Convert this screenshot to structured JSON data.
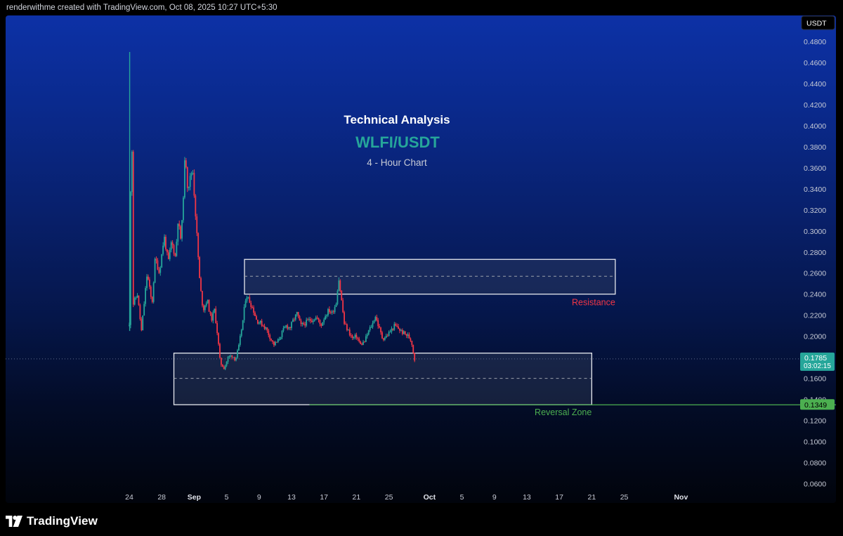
{
  "header": {
    "attribution": "renderwithme created with TradingView.com, Oct 08, 2025 10:27 UTC+5:30"
  },
  "footer": {
    "brand": "TradingView"
  },
  "colors": {
    "up": "#26a69a",
    "down": "#f23645",
    "resistance_label": "#f23645",
    "reversal_label": "#4caf50",
    "title_accent": "#26a69a"
  },
  "chart_data": {
    "type": "candlestick",
    "symbol": "WLFI/USDT",
    "title": "Technical Analysis",
    "subtitle": "WLFI/USDT",
    "caption": "4 - Hour Chart",
    "currency_badge": "USDT",
    "yaxis": {
      "ylim": [
        0.047,
        0.49
      ],
      "ticks": [
        "0.4800",
        "0.4600",
        "0.4400",
        "0.4200",
        "0.4000",
        "0.3800",
        "0.3600",
        "0.3400",
        "0.3200",
        "0.3000",
        "0.2800",
        "0.2600",
        "0.2400",
        "0.2200",
        "0.2000",
        "0.1800",
        "0.1600",
        "0.1400",
        "0.1200",
        "0.1000",
        "0.0800",
        "0.0600"
      ]
    },
    "xaxis": {
      "ticks": [
        {
          "label": "24",
          "day": 0
        },
        {
          "label": "28",
          "day": 4
        },
        {
          "label": "Sep",
          "day": 8
        },
        {
          "label": "5",
          "day": 12
        },
        {
          "label": "9",
          "day": 16
        },
        {
          "label": "13",
          "day": 20
        },
        {
          "label": "17",
          "day": 24
        },
        {
          "label": "21",
          "day": 28
        },
        {
          "label": "25",
          "day": 32
        },
        {
          "label": "Oct",
          "day": 37
        },
        {
          "label": "5",
          "day": 41
        },
        {
          "label": "9",
          "day": 45
        },
        {
          "label": "13",
          "day": 49
        },
        {
          "label": "17",
          "day": 53
        },
        {
          "label": "21",
          "day": 57
        },
        {
          "label": "25",
          "day": 61
        },
        {
          "label": "Nov",
          "day": 68
        }
      ]
    },
    "price_path": [
      [
        0.0,
        0.21
      ],
      [
        0.004,
        0.46
      ],
      [
        0.1,
        0.43
      ],
      [
        0.1,
        0.3
      ],
      [
        0.3,
        0.42
      ],
      [
        0.45,
        0.23
      ],
      [
        1.0,
        0.24
      ],
      [
        1.5,
        0.205
      ],
      [
        2.2,
        0.26
      ],
      [
        2.8,
        0.23
      ],
      [
        3.2,
        0.275
      ],
      [
        3.7,
        0.26
      ],
      [
        4.3,
        0.295
      ],
      [
        4.8,
        0.27
      ],
      [
        5.2,
        0.29
      ],
      [
        5.7,
        0.275
      ],
      [
        6.0,
        0.31
      ],
      [
        6.4,
        0.29
      ],
      [
        6.9,
        0.375
      ],
      [
        7.2,
        0.34
      ],
      [
        7.8,
        0.36
      ],
      [
        8.3,
        0.3
      ],
      [
        8.7,
        0.25
      ],
      [
        9.1,
        0.225
      ],
      [
        9.6,
        0.235
      ],
      [
        10.1,
        0.215
      ],
      [
        10.5,
        0.225
      ],
      [
        10.9,
        0.2
      ],
      [
        11.2,
        0.175
      ],
      [
        11.7,
        0.17
      ],
      [
        12.2,
        0.18
      ],
      [
        12.7,
        0.182
      ],
      [
        13.1,
        0.178
      ],
      [
        13.5,
        0.19
      ],
      [
        14.0,
        0.215
      ],
      [
        14.4,
        0.24
      ],
      [
        14.9,
        0.232
      ],
      [
        15.3,
        0.225
      ],
      [
        15.7,
        0.215
      ],
      [
        16.3,
        0.212
      ],
      [
        16.8,
        0.208
      ],
      [
        17.3,
        0.2
      ],
      [
        17.8,
        0.192
      ],
      [
        18.3,
        0.195
      ],
      [
        18.8,
        0.203
      ],
      [
        19.3,
        0.21
      ],
      [
        19.8,
        0.208
      ],
      [
        20.2,
        0.215
      ],
      [
        20.7,
        0.222
      ],
      [
        21.1,
        0.21
      ],
      [
        21.6,
        0.212
      ],
      [
        22.1,
        0.215
      ],
      [
        22.6,
        0.216
      ],
      [
        23.1,
        0.218
      ],
      [
        23.6,
        0.21
      ],
      [
        24.1,
        0.219
      ],
      [
        24.6,
        0.225
      ],
      [
        25.0,
        0.222
      ],
      [
        25.5,
        0.232
      ],
      [
        25.8,
        0.256
      ],
      [
        26.1,
        0.238
      ],
      [
        26.5,
        0.212
      ],
      [
        27.0,
        0.205
      ],
      [
        27.5,
        0.198
      ],
      [
        28.0,
        0.2
      ],
      [
        28.5,
        0.192
      ],
      [
        29.0,
        0.195
      ],
      [
        29.5,
        0.205
      ],
      [
        30.0,
        0.212
      ],
      [
        30.3,
        0.22
      ],
      [
        30.7,
        0.21
      ],
      [
        31.2,
        0.198
      ],
      [
        31.7,
        0.2
      ],
      [
        32.2,
        0.205
      ],
      [
        32.7,
        0.21
      ],
      [
        33.1,
        0.208
      ],
      [
        33.6,
        0.204
      ],
      [
        34.0,
        0.202
      ],
      [
        34.4,
        0.2
      ],
      [
        34.8,
        0.195
      ],
      [
        35.1,
        0.18
      ],
      [
        35.3,
        0.174
      ]
    ],
    "zones": [
      {
        "label": "Resistance",
        "top": 0.273,
        "bottom": 0.24,
        "mid": 0.257,
        "x_start_day": 14.2,
        "x_end_day": 59.9
      },
      {
        "label": "Reversal Zone",
        "top": 0.184,
        "bottom": 0.135,
        "mid": 0.16,
        "x_start_day": 5.5,
        "x_end_day": 57.0
      }
    ],
    "support_line": {
      "price": 0.1349,
      "label": "0.1349"
    },
    "last_price": {
      "price": 0.1785,
      "label": "0.1785",
      "countdown": "03:02:15"
    },
    "grid": false,
    "legend": "none"
  }
}
